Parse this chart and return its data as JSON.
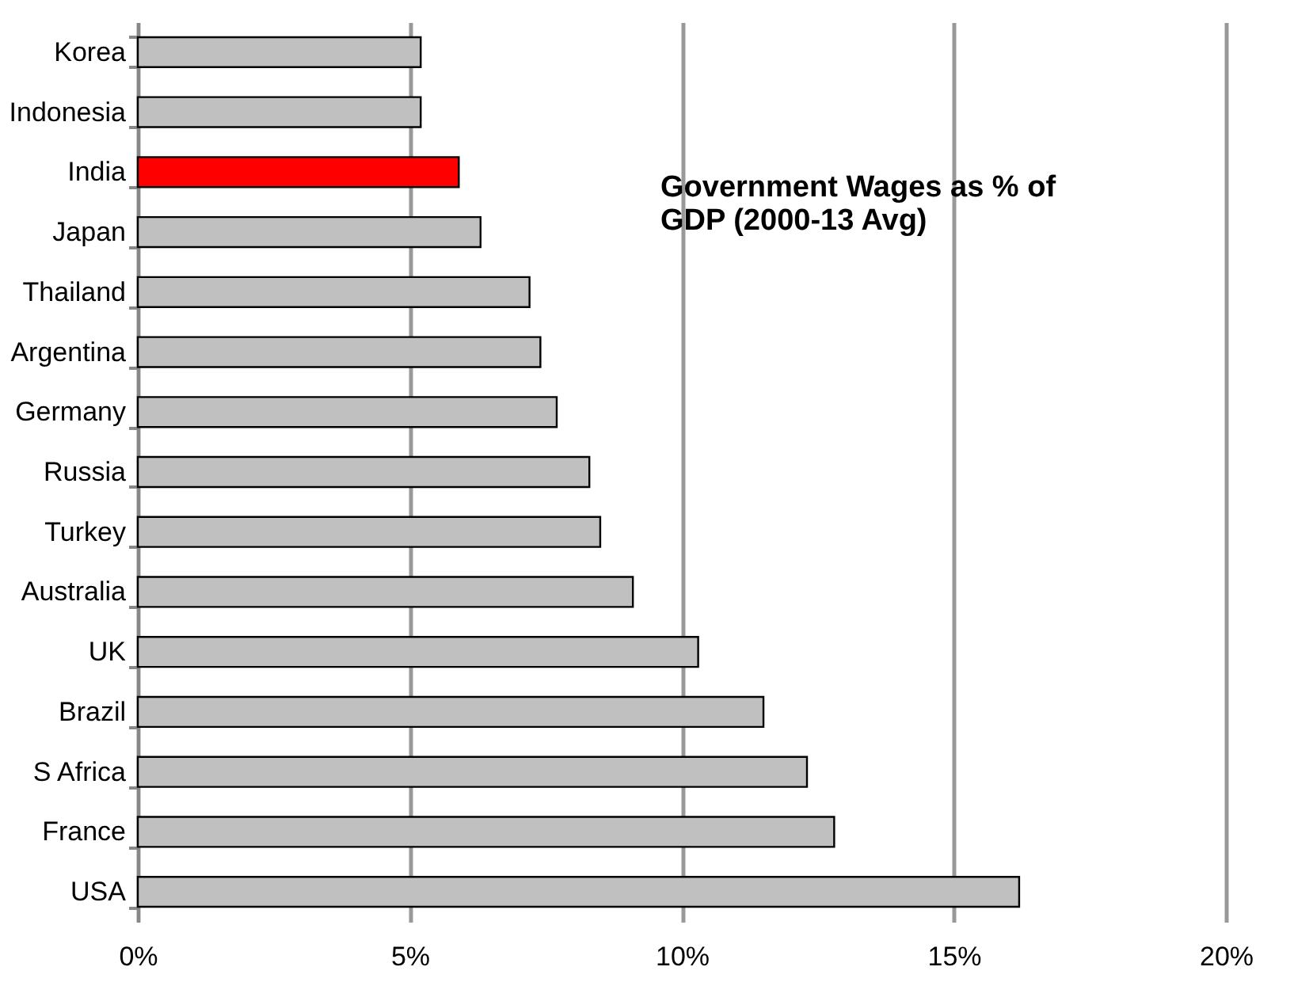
{
  "chart_data": {
    "type": "bar",
    "orientation": "horizontal",
    "categories": [
      "Korea",
      "Indonesia",
      "India",
      "Japan",
      "Thailand",
      "Argentina",
      "Germany",
      "Russia",
      "Turkey",
      "Australia",
      "UK",
      "Brazil",
      "S Africa",
      "France",
      "USA"
    ],
    "values": [
      5.2,
      5.2,
      5.9,
      6.3,
      7.2,
      7.4,
      7.7,
      8.3,
      8.5,
      9.1,
      10.3,
      11.5,
      12.3,
      12.8,
      16.2
    ],
    "colors": [
      "#c0c0c0",
      "#c0c0c0",
      "#ff0000",
      "#c0c0c0",
      "#c0c0c0",
      "#c0c0c0",
      "#c0c0c0",
      "#c0c0c0",
      "#c0c0c0",
      "#c0c0c0",
      "#c0c0c0",
      "#c0c0c0",
      "#c0c0c0",
      "#c0c0c0",
      "#c0c0c0"
    ],
    "xlim": [
      0,
      20
    ],
    "xticks": [
      {
        "value": 0,
        "label": "0%"
      },
      {
        "value": 5,
        "label": "5%"
      },
      {
        "value": 10,
        "label": "10%"
      },
      {
        "value": 15,
        "label": "15%"
      },
      {
        "value": 20,
        "label": "20%"
      }
    ],
    "grid": "x",
    "annotations": [
      "Government Wages as % of\nGDP (2000-13 Avg)"
    ]
  }
}
